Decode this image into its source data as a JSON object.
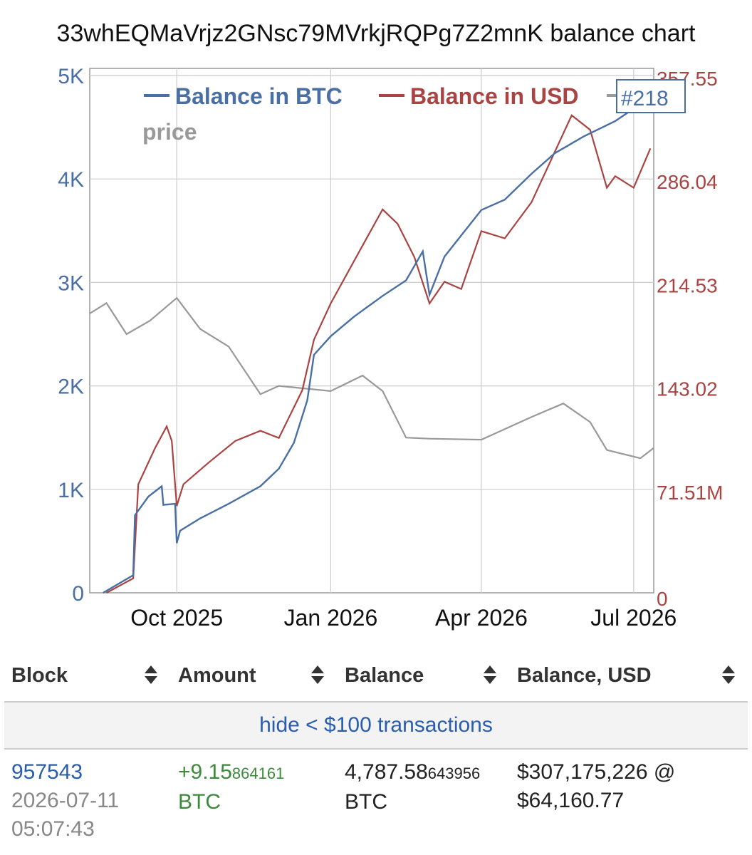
{
  "chart": {
    "title": "33whEQMaVrjz2GNsc79MVrkjRQPg7Z2mnK balance chart",
    "legend": {
      "btc_label": "Balance in BTC",
      "usd_label": "Balance in USD",
      "price_label": "price",
      "btc_color": "#4a6fa5",
      "usd_color": "#a94442",
      "price_color": "#999999"
    },
    "marker_label": "#218",
    "left_ticks": [
      "5K",
      "4K",
      "3K",
      "2K",
      "1K",
      "0"
    ],
    "right_ticks": [
      "357.55",
      "286.04",
      "214.53",
      "143.02",
      "71.51M",
      "0"
    ],
    "x_ticks": [
      "Oct 2025",
      "Jan 2026",
      "Apr 2026",
      "Jul 2026"
    ]
  },
  "chart_data": {
    "type": "line",
    "title": "33whEQMaVrjz2GNsc79MVrkjRQPg7Z2mnK balance chart",
    "x_range": [
      "2025-08-10",
      "2026-07-13"
    ],
    "y_left_range": [
      0,
      5000
    ],
    "y_right_range_usd_millions": [
      0,
      357.55
    ],
    "grid": true,
    "legend_position": "top",
    "series": [
      {
        "name": "Balance in BTC",
        "axis": "left",
        "points": [
          [
            "2025-08-18",
            0
          ],
          [
            "2025-09-05",
            170
          ],
          [
            "2025-09-06",
            750
          ],
          [
            "2025-09-14",
            930
          ],
          [
            "2025-09-22",
            1030
          ],
          [
            "2025-09-23",
            850
          ],
          [
            "2025-09-30",
            860
          ],
          [
            "2025-10-01",
            480
          ],
          [
            "2025-10-03",
            600
          ],
          [
            "2025-10-15",
            720
          ],
          [
            "2025-11-01",
            860
          ],
          [
            "2025-11-20",
            1030
          ],
          [
            "2025-12-01",
            1200
          ],
          [
            "2025-12-10",
            1450
          ],
          [
            "2025-12-18",
            1860
          ],
          [
            "2025-12-22",
            2300
          ],
          [
            "2026-01-01",
            2480
          ],
          [
            "2026-01-15",
            2670
          ],
          [
            "2026-02-01",
            2870
          ],
          [
            "2026-02-15",
            3020
          ],
          [
            "2026-02-25",
            3300
          ],
          [
            "2026-03-01",
            2880
          ],
          [
            "2026-03-10",
            3250
          ],
          [
            "2026-04-01",
            3700
          ],
          [
            "2026-04-15",
            3800
          ],
          [
            "2026-05-01",
            4050
          ],
          [
            "2026-05-15",
            4250
          ],
          [
            "2026-06-01",
            4410
          ],
          [
            "2026-06-20",
            4560
          ],
          [
            "2026-07-11",
            4787.58643956
          ]
        ]
      },
      {
        "name": "Balance in USD",
        "axis": "right",
        "points": [
          [
            "2025-08-20",
            0
          ],
          [
            "2025-09-05",
            10
          ],
          [
            "2025-09-08",
            75
          ],
          [
            "2025-09-18",
            100
          ],
          [
            "2025-09-25",
            115
          ],
          [
            "2025-09-28",
            105
          ],
          [
            "2025-10-01",
            60
          ],
          [
            "2025-10-05",
            75
          ],
          [
            "2025-10-20",
            90
          ],
          [
            "2025-11-05",
            105
          ],
          [
            "2025-11-20",
            112
          ],
          [
            "2025-12-01",
            107
          ],
          [
            "2025-12-15",
            140
          ],
          [
            "2025-12-22",
            175
          ],
          [
            "2026-01-01",
            200
          ],
          [
            "2026-01-20",
            240
          ],
          [
            "2026-02-01",
            265
          ],
          [
            "2026-02-10",
            255
          ],
          [
            "2026-02-20",
            232
          ],
          [
            "2026-03-01",
            200
          ],
          [
            "2026-03-10",
            215
          ],
          [
            "2026-03-20",
            210
          ],
          [
            "2026-04-01",
            250
          ],
          [
            "2026-04-15",
            245
          ],
          [
            "2026-05-01",
            270
          ],
          [
            "2026-05-15",
            305
          ],
          [
            "2026-05-25",
            330
          ],
          [
            "2026-06-05",
            320
          ],
          [
            "2026-06-15",
            280
          ],
          [
            "2026-06-20",
            288
          ],
          [
            "2026-07-01",
            280
          ],
          [
            "2026-07-11",
            307.175226
          ]
        ]
      },
      {
        "name": "price",
        "axis": "none",
        "points": [
          [
            "2025-08-10",
            2700
          ],
          [
            "2025-08-20",
            2800
          ],
          [
            "2025-09-01",
            2500
          ],
          [
            "2025-09-15",
            2630
          ],
          [
            "2025-10-01",
            2850
          ],
          [
            "2025-10-15",
            2550
          ],
          [
            "2025-11-01",
            2380
          ],
          [
            "2025-11-20",
            1920
          ],
          [
            "2025-12-01",
            2000
          ],
          [
            "2026-01-01",
            1950
          ],
          [
            "2026-01-20",
            2100
          ],
          [
            "2026-02-01",
            1950
          ],
          [
            "2026-02-15",
            1500
          ],
          [
            "2026-03-01",
            1490
          ],
          [
            "2026-04-01",
            1480
          ],
          [
            "2026-05-01",
            1700
          ],
          [
            "2026-05-20",
            1830
          ],
          [
            "2026-06-05",
            1650
          ],
          [
            "2026-06-15",
            1380
          ],
          [
            "2026-07-05",
            1300
          ],
          [
            "2026-07-13",
            1400
          ]
        ]
      }
    ]
  },
  "table": {
    "headers": [
      "Block",
      "Amount",
      "Balance",
      "Balance, USD"
    ],
    "hide_link": "hide < $100 transactions",
    "rows": [
      {
        "block": "957543",
        "date": "2026-07-11",
        "time": "05:07:43",
        "amount_main": "+9.15",
        "amount_small": "864161",
        "amount_unit": "BTC",
        "balance_main": "4,787.58",
        "balance_small": "643956",
        "balance_unit": "BTC",
        "usd_line1": "$307,175,226 @",
        "usd_line2": "$64,160.77"
      }
    ]
  }
}
